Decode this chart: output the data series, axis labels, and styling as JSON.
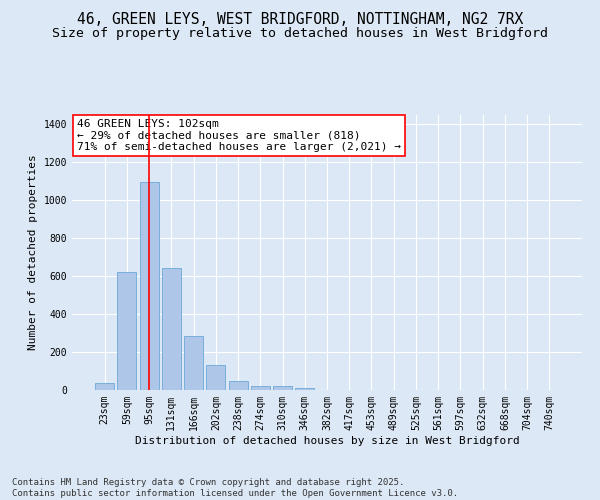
{
  "title_line1": "46, GREEN LEYS, WEST BRIDGFORD, NOTTINGHAM, NG2 7RX",
  "title_line2": "Size of property relative to detached houses in West Bridgford",
  "xlabel": "Distribution of detached houses by size in West Bridgford",
  "ylabel": "Number of detached properties",
  "categories": [
    "23sqm",
    "59sqm",
    "95sqm",
    "131sqm",
    "166sqm",
    "202sqm",
    "238sqm",
    "274sqm",
    "310sqm",
    "346sqm",
    "382sqm",
    "417sqm",
    "453sqm",
    "489sqm",
    "525sqm",
    "561sqm",
    "597sqm",
    "632sqm",
    "668sqm",
    "704sqm",
    "740sqm"
  ],
  "values": [
    35,
    620,
    1095,
    645,
    285,
    130,
    50,
    20,
    20,
    10,
    0,
    0,
    0,
    0,
    0,
    0,
    0,
    0,
    0,
    0,
    0
  ],
  "bar_color": "#aec6e8",
  "bar_edge_color": "#5a9fd4",
  "vline_x": 2.0,
  "vline_color": "red",
  "annotation_text": "46 GREEN LEYS: 102sqm\n← 29% of detached houses are smaller (818)\n71% of semi-detached houses are larger (2,021) →",
  "annotation_box_color": "white",
  "annotation_box_edge": "red",
  "ylim": [
    0,
    1450
  ],
  "yticks": [
    0,
    200,
    400,
    600,
    800,
    1000,
    1200,
    1400
  ],
  "bg_color": "#dce8f5",
  "plot_bg_color": "#dce8f5",
  "footer_line1": "Contains HM Land Registry data © Crown copyright and database right 2025.",
  "footer_line2": "Contains public sector information licensed under the Open Government Licence v3.0.",
  "title_fontsize": 10.5,
  "subtitle_fontsize": 9.5,
  "axis_label_fontsize": 8,
  "tick_fontsize": 7,
  "annotation_fontsize": 8,
  "footer_fontsize": 6.5
}
